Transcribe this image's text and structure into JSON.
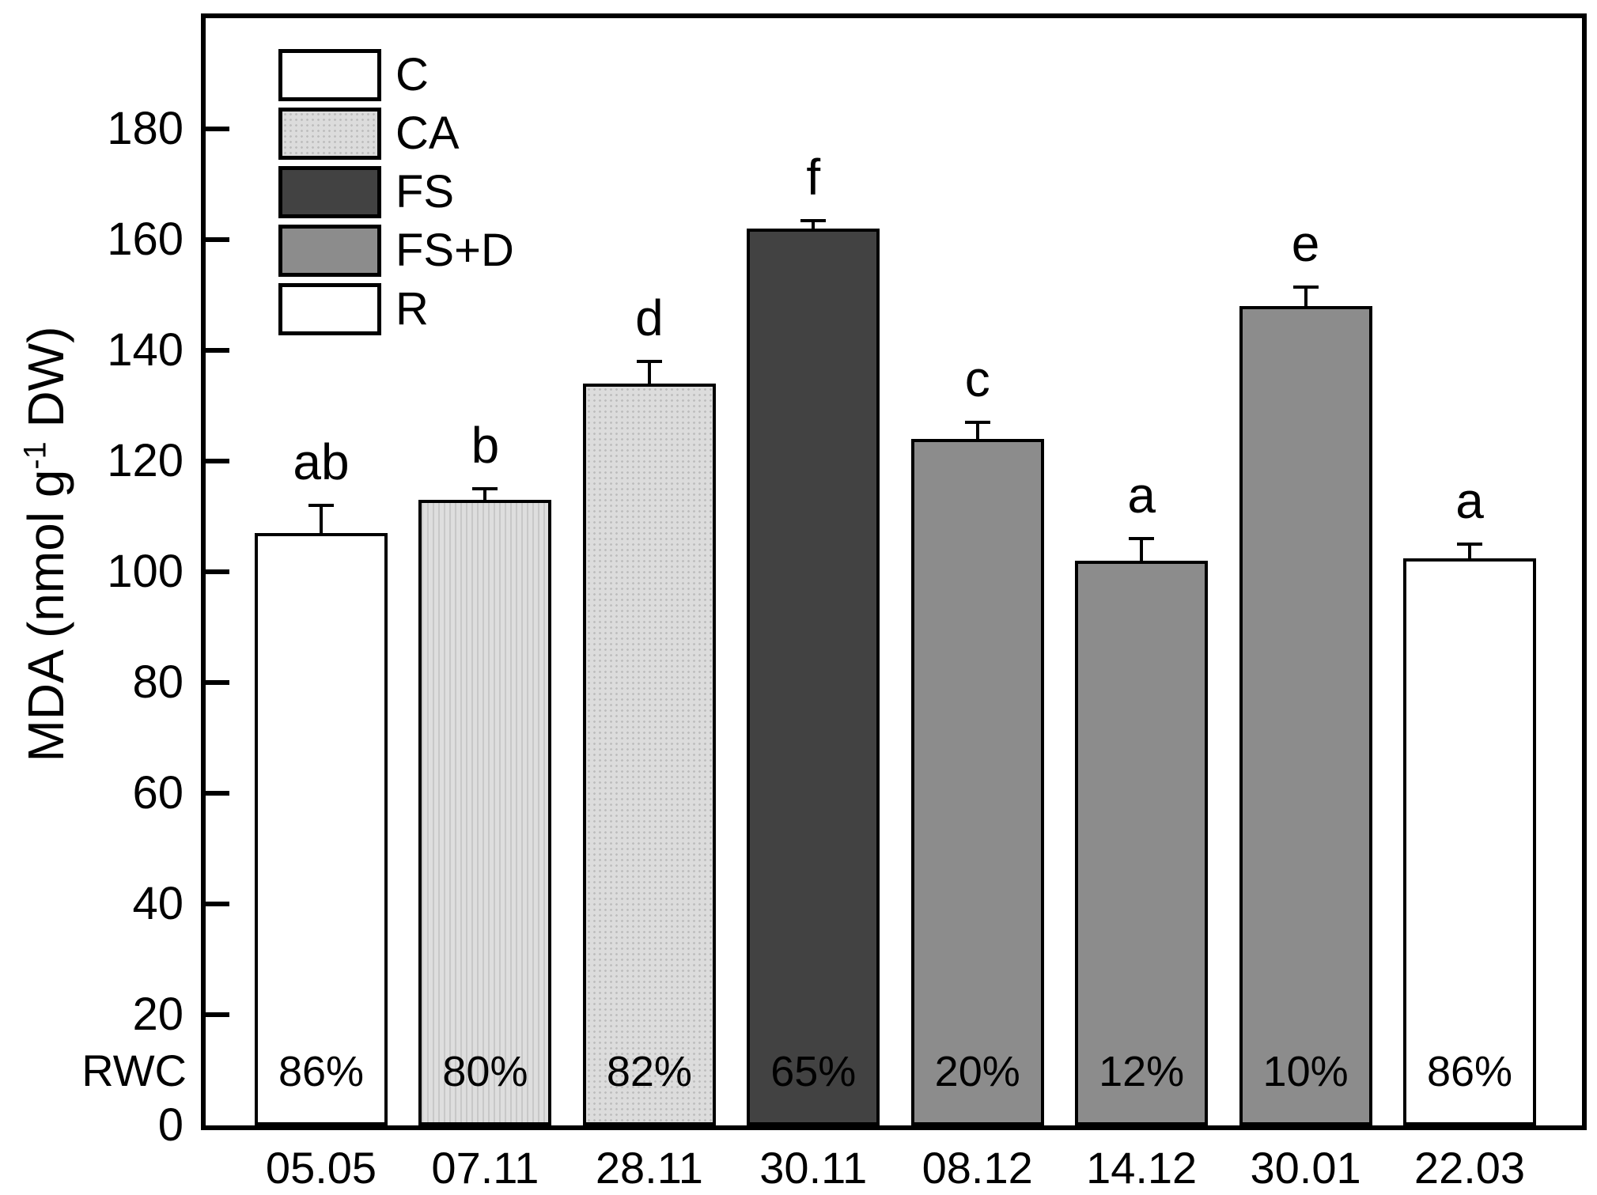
{
  "figure": {
    "background": "#ffffff"
  },
  "chart_data": {
    "type": "bar",
    "title": "",
    "xlabel": "",
    "ylabel": "MDA (nmol g-1 DW)",
    "ylabel_parts": {
      "prefix": "MDA (nmol g",
      "superscript": "-1",
      "suffix": " DW)"
    },
    "ylim": [
      0,
      200
    ],
    "yticks": [
      0,
      20,
      40,
      60,
      80,
      100,
      120,
      140,
      160,
      180
    ],
    "grid": false,
    "legend_position": "top-left-inside",
    "categories": [
      "05.05",
      "07.11",
      "28.11",
      "30.11",
      "08.12",
      "14.12",
      "30.01",
      "22.03"
    ],
    "bars": [
      {
        "date": "05.05",
        "group": "C",
        "value": 107,
        "error": 5,
        "letter": "ab",
        "rwc": "86%",
        "fill": "white"
      },
      {
        "date": "07.11",
        "group": "CA",
        "value": 113,
        "error": 2,
        "letter": "b",
        "rwc": "80%",
        "fill": "light-stripes"
      },
      {
        "date": "28.11",
        "group": "CA",
        "value": 134,
        "error": 4,
        "letter": "d",
        "rwc": "82%",
        "fill": "light-dots"
      },
      {
        "date": "30.11",
        "group": "FS",
        "value": 162,
        "error": 1.5,
        "letter": "f",
        "rwc": "65%",
        "fill": "dark"
      },
      {
        "date": "08.12",
        "group": "FS+D",
        "value": 124,
        "error": 3,
        "letter": "c",
        "rwc": "20%",
        "fill": "medium"
      },
      {
        "date": "14.12",
        "group": "FS+D",
        "value": 102,
        "error": 4,
        "letter": "a",
        "rwc": "12%",
        "fill": "medium"
      },
      {
        "date": "30.01",
        "group": "FS+D",
        "value": 148,
        "error": 3.5,
        "letter": "e",
        "rwc": "10%",
        "fill": "medium"
      },
      {
        "date": "22.03",
        "group": "R",
        "value": 102.5,
        "error": 2.5,
        "letter": "a",
        "rwc": "86%",
        "fill": "white"
      }
    ],
    "legend": [
      {
        "label": "C",
        "fill": "white"
      },
      {
        "label": "CA",
        "fill": "light-dots"
      },
      {
        "label": "FS",
        "fill": "dark"
      },
      {
        "label": "FS+D",
        "fill": "medium"
      },
      {
        "label": "R",
        "fill": "white"
      }
    ],
    "rwc_axis_label": "RWC",
    "colors": {
      "dark": "#424242",
      "medium": "#8c8c8c",
      "light": "#dcdcdc",
      "white": "#ffffff",
      "line": "#000000"
    }
  }
}
